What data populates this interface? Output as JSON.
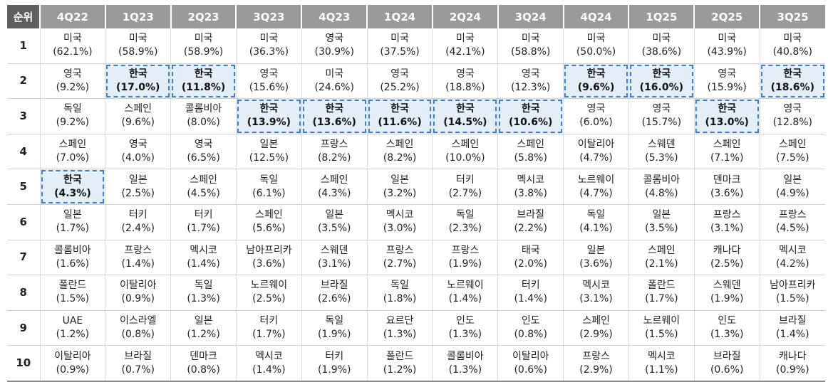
{
  "table": {
    "rank_header": "순위",
    "quarters": [
      "4Q22",
      "1Q23",
      "2Q23",
      "3Q23",
      "4Q23",
      "1Q24",
      "2Q24",
      "3Q24",
      "4Q24",
      "1Q25",
      "2Q25",
      "3Q25"
    ],
    "highlight_color": "#e4eef9",
    "highlight_border_color": "#3f7fc0",
    "header_color": "#9a9a9a",
    "rank_header_color": "#5f5f5f",
    "rows": [
      {
        "rank": "1",
        "cells": [
          {
            "country": "미국",
            "share": "(62.1%)"
          },
          {
            "country": "미국",
            "share": "(58.9%)"
          },
          {
            "country": "미국",
            "share": "(58.9%)"
          },
          {
            "country": "미국",
            "share": "(36.3%)"
          },
          {
            "country": "영국",
            "share": "(30.9%)"
          },
          {
            "country": "미국",
            "share": "(37.5%)"
          },
          {
            "country": "미국",
            "share": "(42.1%)"
          },
          {
            "country": "미국",
            "share": "(58.8%)"
          },
          {
            "country": "미국",
            "share": "(50.0%)"
          },
          {
            "country": "미국",
            "share": "(38.6%)"
          },
          {
            "country": "미국",
            "share": "(43.9%)"
          },
          {
            "country": "미국",
            "share": "(40.8%)"
          }
        ]
      },
      {
        "rank": "2",
        "cells": [
          {
            "country": "영국",
            "share": "(9.2%)"
          },
          {
            "country": "한국",
            "share": "(17.0%)",
            "highlight": true
          },
          {
            "country": "한국",
            "share": "(11.8%)",
            "highlight": true
          },
          {
            "country": "영국",
            "share": "(15.6%)"
          },
          {
            "country": "미국",
            "share": "(24.6%)"
          },
          {
            "country": "영국",
            "share": "(25.2%)"
          },
          {
            "country": "영국",
            "share": "(18.8%)"
          },
          {
            "country": "영국",
            "share": "(12.3%)"
          },
          {
            "country": "한국",
            "share": "(9.6%)",
            "highlight": true
          },
          {
            "country": "한국",
            "share": "(16.0%)",
            "highlight": true
          },
          {
            "country": "영국",
            "share": "(15.9%)"
          },
          {
            "country": "한국",
            "share": "(18.6%)",
            "highlight": true
          }
        ]
      },
      {
        "rank": "3",
        "cells": [
          {
            "country": "독일",
            "share": "(9.2%)"
          },
          {
            "country": "스페인",
            "share": "(9.6%)"
          },
          {
            "country": "콜롬비아",
            "share": "(8.0%)"
          },
          {
            "country": "한국",
            "share": "(13.9%)",
            "highlight": true
          },
          {
            "country": "한국",
            "share": "(13.6%)",
            "highlight": true
          },
          {
            "country": "한국",
            "share": "(11.6%)",
            "highlight": true
          },
          {
            "country": "한국",
            "share": "(14.5%)",
            "highlight": true
          },
          {
            "country": "한국",
            "share": "(10.6%)",
            "highlight": true
          },
          {
            "country": "영국",
            "share": "(6.0%)"
          },
          {
            "country": "영국",
            "share": "(15.7%)"
          },
          {
            "country": "한국",
            "share": "(13.0%)",
            "highlight": true
          },
          {
            "country": "영국",
            "share": "(12.8%)"
          }
        ]
      },
      {
        "rank": "4",
        "cells": [
          {
            "country": "스페인",
            "share": "(7.0%)"
          },
          {
            "country": "영국",
            "share": "(4.0%)"
          },
          {
            "country": "영국",
            "share": "(6.5%)"
          },
          {
            "country": "일본",
            "share": "(12.5%)"
          },
          {
            "country": "프랑스",
            "share": "(8.2%)"
          },
          {
            "country": "스페인",
            "share": "(8.2%)"
          },
          {
            "country": "스페인",
            "share": "(10.0%)"
          },
          {
            "country": "스페인",
            "share": "(5.8%)"
          },
          {
            "country": "이탈리아",
            "share": "(4.7%)"
          },
          {
            "country": "스웨덴",
            "share": "(5.3%)"
          },
          {
            "country": "스페인",
            "share": "(7.1%)"
          },
          {
            "country": "스페인",
            "share": "(7.5%)"
          }
        ]
      },
      {
        "rank": "5",
        "cells": [
          {
            "country": "한국",
            "share": "(4.3%)",
            "highlight": true
          },
          {
            "country": "일본",
            "share": "(2.5%)"
          },
          {
            "country": "스페인",
            "share": "(4.5%)"
          },
          {
            "country": "독일",
            "share": "(6.1%)"
          },
          {
            "country": "스페인",
            "share": "(4.3%)"
          },
          {
            "country": "일본",
            "share": "(3.2%)"
          },
          {
            "country": "터키",
            "share": "(2.7%)"
          },
          {
            "country": "멕시코",
            "share": "(3.8%)"
          },
          {
            "country": "노르웨이",
            "share": "(4.7%)"
          },
          {
            "country": "콜롬비아",
            "share": "(4.8%)"
          },
          {
            "country": "덴마크",
            "share": "(3.6%)"
          },
          {
            "country": "일본",
            "share": "(4.9%)"
          }
        ]
      },
      {
        "rank": "6",
        "cells": [
          {
            "country": "일본",
            "share": "(1.7%)"
          },
          {
            "country": "터키",
            "share": "(2.4%)"
          },
          {
            "country": "터키",
            "share": "(1.7%)"
          },
          {
            "country": "스페인",
            "share": "(5.6%)"
          },
          {
            "country": "일본",
            "share": "(3.5%)"
          },
          {
            "country": "멕시코",
            "share": "(3.0%)"
          },
          {
            "country": "독일",
            "share": "(2.3%)"
          },
          {
            "country": "브라질",
            "share": "(2.2%)"
          },
          {
            "country": "독일",
            "share": "(4.1%)"
          },
          {
            "country": "일본",
            "share": "(3.5%)"
          },
          {
            "country": "프랑스",
            "share": "(3.1%)"
          },
          {
            "country": "프랑스",
            "share": "(4.5%)"
          }
        ]
      },
      {
        "rank": "7",
        "cells": [
          {
            "country": "콜롬비아",
            "share": "(1.6%)"
          },
          {
            "country": "프랑스",
            "share": "(1.4%)"
          },
          {
            "country": "멕시코",
            "share": "(1.4%)"
          },
          {
            "country": "남아프리카",
            "share": "(3.6%)"
          },
          {
            "country": "스웨덴",
            "share": "(3.1%)"
          },
          {
            "country": "프랑스",
            "share": "(2.7%)"
          },
          {
            "country": "프랑스",
            "share": "(1.9%)"
          },
          {
            "country": "태국",
            "share": "(2.0%)"
          },
          {
            "country": "일본",
            "share": "(3.6%)"
          },
          {
            "country": "스페인",
            "share": "(2.1%)"
          },
          {
            "country": "캐나다",
            "share": "(2.5%)"
          },
          {
            "country": "멕시코",
            "share": "(4.2%)"
          }
        ]
      },
      {
        "rank": "8",
        "cells": [
          {
            "country": "폴란드",
            "share": "(1.5%)"
          },
          {
            "country": "이탈리아",
            "share": "(0.9%)"
          },
          {
            "country": "독일",
            "share": "(1.3%)"
          },
          {
            "country": "노르웨이",
            "share": "(2.5%)"
          },
          {
            "country": "브라질",
            "share": "(2.6%)"
          },
          {
            "country": "독일",
            "share": "(1.8%)"
          },
          {
            "country": "노르웨이",
            "share": "(1.4%)"
          },
          {
            "country": "터키",
            "share": "(1.4%)"
          },
          {
            "country": "멕시코",
            "share": "(3.1%)"
          },
          {
            "country": "폴란드",
            "share": "(1.7%)"
          },
          {
            "country": "스웨덴",
            "share": "(1.9%)"
          },
          {
            "country": "남아프리카",
            "share": "(1.5%)"
          }
        ]
      },
      {
        "rank": "9",
        "cells": [
          {
            "country": "UAE",
            "share": "(1.2%)"
          },
          {
            "country": "이스라엘",
            "share": "(0.8%)"
          },
          {
            "country": "일본",
            "share": "(1.2%)"
          },
          {
            "country": "터키",
            "share": "(1.7%)"
          },
          {
            "country": "독일",
            "share": "(1.9%)"
          },
          {
            "country": "요르단",
            "share": "(1.3%)"
          },
          {
            "country": "인도",
            "share": "(1.3%)"
          },
          {
            "country": "인도",
            "share": "(0.8%)"
          },
          {
            "country": "스페인",
            "share": "(2.9%)"
          },
          {
            "country": "노르웨이",
            "share": "(1.5%)"
          },
          {
            "country": "인도",
            "share": "(1.3%)"
          },
          {
            "country": "브라질",
            "share": "(1.4%)"
          }
        ]
      },
      {
        "rank": "10",
        "cells": [
          {
            "country": "이탈리아",
            "share": "(0.9%)"
          },
          {
            "country": "브라질",
            "share": "(0.7%)"
          },
          {
            "country": "덴마크",
            "share": "(0.8%)"
          },
          {
            "country": "멕시코",
            "share": "(1.4%)"
          },
          {
            "country": "터키",
            "share": "(1.9%)"
          },
          {
            "country": "폴란드",
            "share": "(1.2%)"
          },
          {
            "country": "콜롬비아",
            "share": "(1.3%)"
          },
          {
            "country": "이탈리아",
            "share": "(0.6%)"
          },
          {
            "country": "프랑스",
            "share": "(2.9%)"
          },
          {
            "country": "멕시코",
            "share": "(1.1%)"
          },
          {
            "country": "브라질",
            "share": "(0.6%)"
          },
          {
            "country": "캐나다",
            "share": "(0.9%)"
          }
        ]
      }
    ]
  }
}
